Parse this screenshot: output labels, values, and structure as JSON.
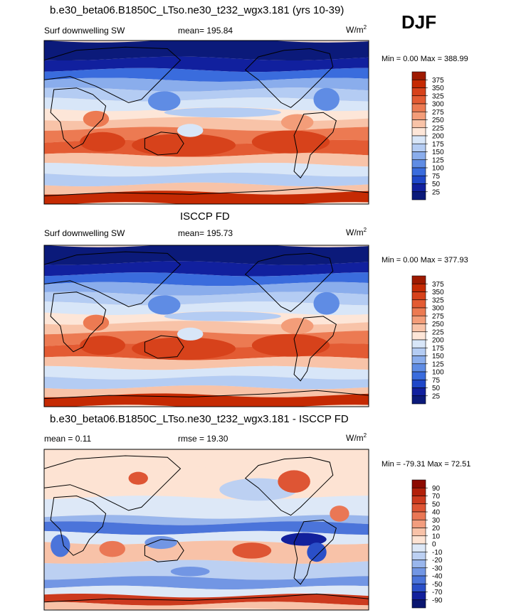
{
  "page_title": "DJF",
  "chart_data": [
    {
      "type": "heatmap",
      "title": "b.e30_beta06.B1850C_LTso.ne30_t232_wgx3.181 (yrs 10-39)",
      "left_label": "Surf downwelling SW",
      "center_label": "mean= 195.84",
      "unit_base": "W/m",
      "unit_sup": "2",
      "minmax": "Min =   0.00 Max = 388.99",
      "levels": [
        "375",
        "350",
        "325",
        "300",
        "275",
        "250",
        "225",
        "200",
        "175",
        "150",
        "125",
        "100",
        "75",
        "50",
        "25"
      ],
      "colors": [
        "#9e1a00",
        "#c52a03",
        "#d7421b",
        "#e35b33",
        "#ec7a52",
        "#f39d79",
        "#f8c3a8",
        "#fde6d8",
        "#d8e6f8",
        "#b4ccf3",
        "#8aadec",
        "#5f8ce4",
        "#3a6cdd",
        "#1f47c8",
        "#11209e",
        "#0b1a7a"
      ],
      "map_kind": "absolute"
    },
    {
      "type": "heatmap",
      "title": "ISCCP FD",
      "left_label": "Surf downwelling SW",
      "center_label": "mean= 195.73",
      "unit_base": "W/m",
      "unit_sup": "2",
      "minmax": "Min =   0.00 Max = 377.93",
      "levels": [
        "375",
        "350",
        "325",
        "300",
        "275",
        "250",
        "225",
        "200",
        "175",
        "150",
        "125",
        "100",
        "75",
        "50",
        "25"
      ],
      "colors": [
        "#9e1a00",
        "#c52a03",
        "#d7421b",
        "#e35b33",
        "#ec7a52",
        "#f39d79",
        "#f8c3a8",
        "#fde6d8",
        "#d8e6f8",
        "#b4ccf3",
        "#8aadec",
        "#5f8ce4",
        "#3a6cdd",
        "#1f47c8",
        "#11209e",
        "#0b1a7a"
      ],
      "map_kind": "absolute"
    },
    {
      "type": "heatmap",
      "title": "b.e30_beta06.B1850C_LTso.ne30_t232_wgx3.181 - ISCCP FD",
      "left_label": "mean =   0.11",
      "center_label": "rmse =  19.30",
      "unit_base": "W/m",
      "unit_sup": "2",
      "minmax": "Min = -79.31 Max =  72.51",
      "levels": [
        "90",
        "70",
        "50",
        "40",
        "30",
        "20",
        "10",
        "0",
        "-10",
        "-20",
        "-30",
        "-40",
        "-50",
        "-70",
        "-90"
      ],
      "colors": [
        "#8c0a00",
        "#b2200a",
        "#cc3a1e",
        "#de5534",
        "#ea7755",
        "#f29d7e",
        "#f8c2a8",
        "#fde3d3",
        "#dde8f7",
        "#bcd0f2",
        "#99b6ec",
        "#7296e4",
        "#4b74da",
        "#2a4fc8",
        "#12209c",
        "#0a1670"
      ],
      "map_kind": "difference"
    }
  ]
}
